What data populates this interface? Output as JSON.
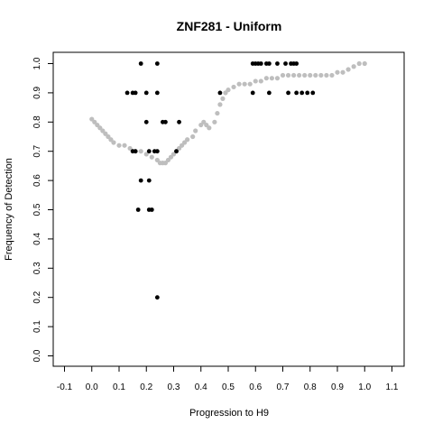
{
  "chart_data": {
    "type": "scatter",
    "title": "ZNF281 - Uniform",
    "xlabel": "Progression to H9",
    "ylabel": "Frequency of Detection",
    "xlim": [
      -0.1,
      1.1
    ],
    "ylim": [
      0.0,
      1.0
    ],
    "x_ticks": [
      "-0.1",
      "0.0",
      "0.1",
      "0.2",
      "0.3",
      "0.4",
      "0.5",
      "0.6",
      "0.7",
      "0.8",
      "0.9",
      "1.0",
      "1.1"
    ],
    "y_ticks": [
      "0.0",
      "0.1",
      "0.2",
      "0.3",
      "0.4",
      "0.5",
      "0.6",
      "0.7",
      "0.8",
      "0.9",
      "1.0"
    ],
    "grid": false,
    "colors": {
      "observed": "#000000",
      "smoothed": "#bebebe"
    },
    "series": [
      {
        "values": [
          {
            "x": 0.13,
            "y": 0.9
          },
          {
            "x": 0.15,
            "y": 0.9
          },
          {
            "x": 0.16,
            "y": 0.9
          },
          {
            "x": 0.18,
            "y": 1.0
          },
          {
            "x": 0.2,
            "y": 0.9
          },
          {
            "x": 0.24,
            "y": 1.0
          },
          {
            "x": 0.24,
            "y": 0.9
          },
          {
            "x": 0.15,
            "y": 0.7
          },
          {
            "x": 0.16,
            "y": 0.7
          },
          {
            "x": 0.2,
            "y": 0.8
          },
          {
            "x": 0.21,
            "y": 0.7
          },
          {
            "x": 0.23,
            "y": 0.7
          },
          {
            "x": 0.24,
            "y": 0.7
          },
          {
            "x": 0.26,
            "y": 0.8
          },
          {
            "x": 0.27,
            "y": 0.8
          },
          {
            "x": 0.32,
            "y": 0.8
          },
          {
            "x": 0.31,
            "y": 0.7
          },
          {
            "x": 0.18,
            "y": 0.6
          },
          {
            "x": 0.21,
            "y": 0.6
          },
          {
            "x": 0.17,
            "y": 0.5
          },
          {
            "x": 0.21,
            "y": 0.5
          },
          {
            "x": 0.22,
            "y": 0.5
          },
          {
            "x": 0.24,
            "y": 0.2
          },
          {
            "x": 0.47,
            "y": 0.9
          },
          {
            "x": 0.59,
            "y": 0.9
          },
          {
            "x": 0.65,
            "y": 0.9
          },
          {
            "x": 0.59,
            "y": 1.0
          },
          {
            "x": 0.6,
            "y": 1.0
          },
          {
            "x": 0.61,
            "y": 1.0
          },
          {
            "x": 0.62,
            "y": 1.0
          },
          {
            "x": 0.64,
            "y": 1.0
          },
          {
            "x": 0.65,
            "y": 1.0
          },
          {
            "x": 0.68,
            "y": 1.0
          },
          {
            "x": 0.71,
            "y": 1.0
          },
          {
            "x": 0.73,
            "y": 1.0
          },
          {
            "x": 0.74,
            "y": 1.0
          },
          {
            "x": 0.75,
            "y": 1.0
          },
          {
            "x": 0.72,
            "y": 0.9
          },
          {
            "x": 0.75,
            "y": 0.9
          },
          {
            "x": 0.77,
            "y": 0.9
          },
          {
            "x": 0.79,
            "y": 0.9
          },
          {
            "x": 0.81,
            "y": 0.9
          }
        ]
      },
      {
        "values": [
          {
            "x": 0.0,
            "y": 0.81
          },
          {
            "x": 0.01,
            "y": 0.8
          },
          {
            "x": 0.02,
            "y": 0.79
          },
          {
            "x": 0.03,
            "y": 0.78
          },
          {
            "x": 0.04,
            "y": 0.77
          },
          {
            "x": 0.05,
            "y": 0.76
          },
          {
            "x": 0.06,
            "y": 0.75
          },
          {
            "x": 0.07,
            "y": 0.74
          },
          {
            "x": 0.08,
            "y": 0.73
          },
          {
            "x": 0.1,
            "y": 0.72
          },
          {
            "x": 0.12,
            "y": 0.72
          },
          {
            "x": 0.14,
            "y": 0.71
          },
          {
            "x": 0.16,
            "y": 0.7
          },
          {
            "x": 0.18,
            "y": 0.7
          },
          {
            "x": 0.2,
            "y": 0.69
          },
          {
            "x": 0.22,
            "y": 0.68
          },
          {
            "x": 0.24,
            "y": 0.67
          },
          {
            "x": 0.25,
            "y": 0.66
          },
          {
            "x": 0.26,
            "y": 0.66
          },
          {
            "x": 0.27,
            "y": 0.66
          },
          {
            "x": 0.28,
            "y": 0.67
          },
          {
            "x": 0.29,
            "y": 0.68
          },
          {
            "x": 0.3,
            "y": 0.69
          },
          {
            "x": 0.31,
            "y": 0.7
          },
          {
            "x": 0.32,
            "y": 0.71
          },
          {
            "x": 0.33,
            "y": 0.72
          },
          {
            "x": 0.34,
            "y": 0.73
          },
          {
            "x": 0.35,
            "y": 0.74
          },
          {
            "x": 0.37,
            "y": 0.75
          },
          {
            "x": 0.38,
            "y": 0.77
          },
          {
            "x": 0.4,
            "y": 0.79
          },
          {
            "x": 0.41,
            "y": 0.8
          },
          {
            "x": 0.42,
            "y": 0.79
          },
          {
            "x": 0.43,
            "y": 0.78
          },
          {
            "x": 0.45,
            "y": 0.8
          },
          {
            "x": 0.46,
            "y": 0.83
          },
          {
            "x": 0.47,
            "y": 0.86
          },
          {
            "x": 0.48,
            "y": 0.88
          },
          {
            "x": 0.49,
            "y": 0.9
          },
          {
            "x": 0.5,
            "y": 0.91
          },
          {
            "x": 0.52,
            "y": 0.92
          },
          {
            "x": 0.54,
            "y": 0.93
          },
          {
            "x": 0.56,
            "y": 0.93
          },
          {
            "x": 0.58,
            "y": 0.93
          },
          {
            "x": 0.6,
            "y": 0.94
          },
          {
            "x": 0.62,
            "y": 0.94
          },
          {
            "x": 0.64,
            "y": 0.95
          },
          {
            "x": 0.66,
            "y": 0.95
          },
          {
            "x": 0.68,
            "y": 0.95
          },
          {
            "x": 0.7,
            "y": 0.96
          },
          {
            "x": 0.72,
            "y": 0.96
          },
          {
            "x": 0.74,
            "y": 0.96
          },
          {
            "x": 0.76,
            "y": 0.96
          },
          {
            "x": 0.78,
            "y": 0.96
          },
          {
            "x": 0.8,
            "y": 0.96
          },
          {
            "x": 0.82,
            "y": 0.96
          },
          {
            "x": 0.84,
            "y": 0.96
          },
          {
            "x": 0.86,
            "y": 0.96
          },
          {
            "x": 0.88,
            "y": 0.96
          },
          {
            "x": 0.9,
            "y": 0.97
          },
          {
            "x": 0.92,
            "y": 0.97
          },
          {
            "x": 0.94,
            "y": 0.98
          },
          {
            "x": 0.96,
            "y": 0.99
          },
          {
            "x": 0.98,
            "y": 1.0
          },
          {
            "x": 1.0,
            "y": 1.0
          }
        ]
      }
    ]
  }
}
